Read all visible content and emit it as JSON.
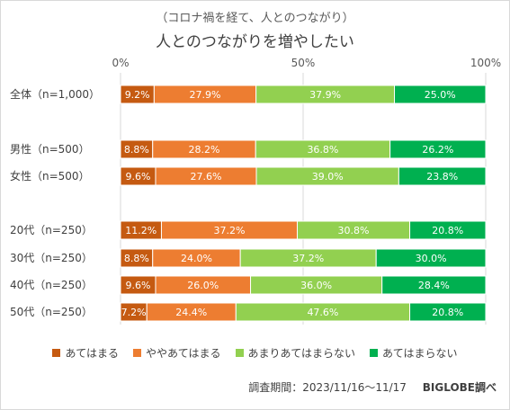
{
  "subtitle": "（コロナ禍を経て、人とのつながり）",
  "title": "人とのつながりを増やしたい",
  "footer": {
    "period": "調査期間：2023/11/16〜11/17",
    "brand": "BIGLOBE調べ"
  },
  "chart_data": {
    "type": "bar",
    "orientation": "horizontal",
    "stacked": true,
    "percent_stacked": true,
    "title": "人とのつながりを増やしたい",
    "subtitle": "（コロナ禍を経て、人とのつながり）",
    "xlim": [
      0,
      100
    ],
    "x_ticks": [
      "0%",
      "50%",
      "100%"
    ],
    "grid": true,
    "legend_position": "bottom",
    "categories": [
      "全体（n=1,000）",
      "男性（n=500）",
      "女性（n=500）",
      "20代（n=250）",
      "30代（n=250）",
      "40代（n=250）",
      "50代（n=250）"
    ],
    "category_groups": [
      [
        0
      ],
      [
        1,
        2
      ],
      [
        3,
        4,
        5,
        6
      ]
    ],
    "series": [
      {
        "name": "あてはまる",
        "color": "#c55a11",
        "values": [
          9.2,
          8.8,
          9.6,
          11.2,
          8.8,
          9.6,
          7.2
        ]
      },
      {
        "name": "ややあてはまる",
        "color": "#ed7d31",
        "values": [
          27.9,
          28.2,
          27.6,
          37.2,
          24.0,
          26.0,
          24.4
        ]
      },
      {
        "name": "あまりあてはまらない",
        "color": "#92d050",
        "values": [
          37.9,
          36.8,
          39.0,
          30.8,
          37.2,
          36.0,
          47.6
        ]
      },
      {
        "name": "あてはまらない",
        "color": "#00b050",
        "values": [
          25.0,
          26.2,
          23.8,
          20.8,
          30.0,
          28.4,
          20.8
        ]
      }
    ]
  }
}
